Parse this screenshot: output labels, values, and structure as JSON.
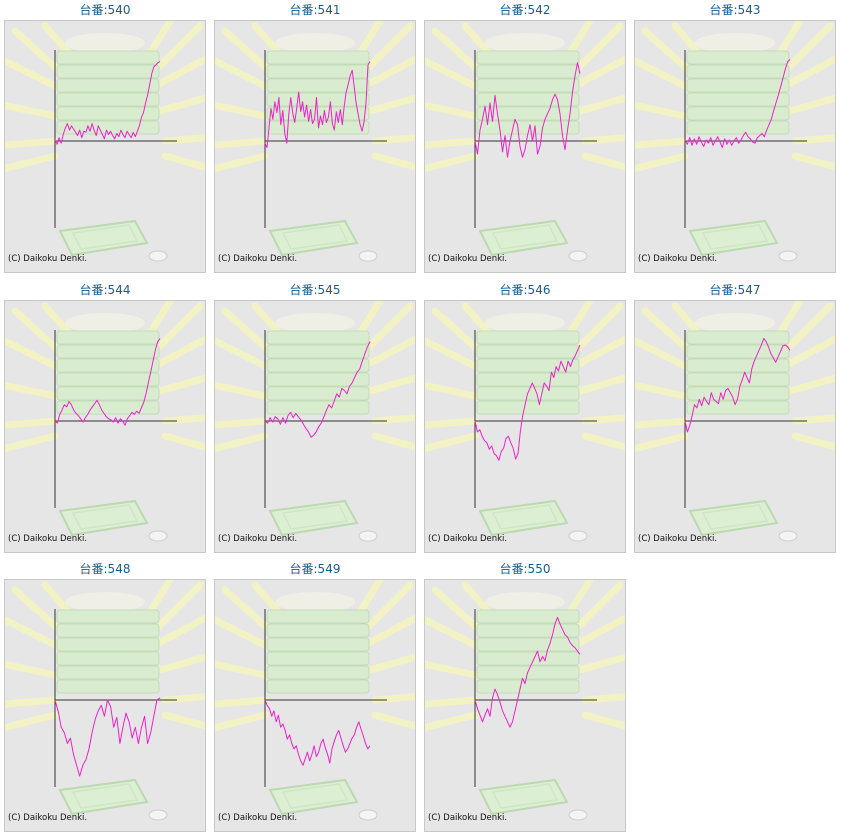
{
  "machine_prefix": "台番:",
  "copyright": "(C) Daikoku Denki.",
  "colors": {
    "line": "#ee22cc",
    "axis": "#333333",
    "background": "#e6e6e6",
    "title": "#1a5d8f"
  },
  "chart_data": [
    {
      "type": "line",
      "title": "台番:540",
      "xlim": [
        0,
        100
      ],
      "ylim": [
        -8000,
        8000
      ],
      "y": [
        100,
        -300,
        300,
        -200,
        600,
        1200,
        1600,
        1000,
        1400,
        1100,
        800,
        500,
        1000,
        300,
        900,
        800,
        1400,
        900,
        1600,
        1000,
        500,
        1400,
        1000,
        600,
        200,
        1000,
        600,
        900,
        500,
        200,
        700,
        400,
        1000,
        600,
        300,
        900,
        600,
        300,
        800,
        400,
        900,
        1400,
        2200,
        2600,
        3500,
        4200,
        5200,
        6200,
        6800,
        7000,
        7200,
        7300
      ]
    },
    {
      "type": "line",
      "title": "台番:541",
      "xlim": [
        0,
        100
      ],
      "ylim": [
        -8000,
        8000
      ],
      "y": [
        -200,
        -600,
        1200,
        3000,
        2000,
        3600,
        2600,
        4000,
        1500,
        2800,
        700,
        -200,
        2500,
        4000,
        2600,
        1700,
        3000,
        4500,
        2700,
        3600,
        2200,
        3300,
        1800,
        2900,
        1600,
        2000,
        4000,
        1200,
        2300,
        1500,
        2800,
        1700,
        2200,
        3600,
        1600,
        1000,
        2700,
        1700,
        2900,
        1500,
        3200,
        4500,
        5200,
        6000,
        6500,
        5000,
        3500,
        2500,
        1500,
        900,
        1800,
        3500,
        7000,
        7300
      ]
    },
    {
      "type": "line",
      "title": "台番:542",
      "xlim": [
        0,
        100
      ],
      "ylim": [
        -8000,
        8000
      ],
      "y": [
        0,
        -1200,
        1000,
        2000,
        3200,
        1500,
        3500,
        1800,
        4200,
        2500,
        1000,
        -1000,
        500,
        -1500,
        0,
        1000,
        2000,
        1500,
        -500,
        -1500,
        -800,
        500,
        1500,
        0,
        1400,
        -1200,
        -500,
        1200,
        2000,
        2500,
        3000,
        3800,
        4300,
        3800,
        2500,
        500,
        -800,
        1000,
        2500,
        4500,
        6000,
        7200,
        6200
      ]
    },
    {
      "type": "line",
      "title": "台番:543",
      "xlim": [
        0,
        100
      ],
      "ylim": [
        -8000,
        8000
      ],
      "y": [
        100,
        -300,
        300,
        -400,
        200,
        -300,
        400,
        -100,
        -500,
        100,
        -200,
        300,
        -400,
        0,
        400,
        -100,
        -600,
        200,
        -300,
        100,
        -400,
        0,
        300,
        -200,
        100,
        500,
        800,
        400,
        200,
        -100,
        -200,
        300,
        500,
        700,
        400,
        1000,
        1500,
        2000,
        2800,
        3500,
        4200,
        5000,
        5800,
        6600,
        7300,
        7500
      ]
    },
    {
      "type": "line",
      "title": "台番:544",
      "xlim": [
        0,
        100
      ],
      "ylim": [
        -8000,
        8000
      ],
      "y": [
        0,
        -200,
        600,
        1000,
        1500,
        1300,
        1800,
        1500,
        1000,
        700,
        500,
        200,
        -100,
        300,
        600,
        1000,
        1300,
        1600,
        1900,
        1500,
        1000,
        700,
        400,
        200,
        100,
        -100,
        300,
        -200,
        200,
        0,
        -400,
        200,
        500,
        800,
        600,
        900,
        700,
        1200,
        1700,
        2500,
        3500,
        4500,
        5500,
        6500,
        7300,
        7600
      ]
    },
    {
      "type": "line",
      "title": "台番:545",
      "xlim": [
        0,
        100
      ],
      "ylim": [
        -8000,
        8000
      ],
      "y": [
        0,
        -200,
        300,
        -100,
        400,
        200,
        -300,
        300,
        -200,
        500,
        800,
        300,
        700,
        400,
        100,
        -300,
        -700,
        -1000,
        -1500,
        -1300,
        -1000,
        -500,
        -200,
        400,
        1000,
        1500,
        1200,
        1800,
        2500,
        2200,
        3000,
        2800,
        2500,
        3200,
        3500,
        4000,
        4500,
        4800,
        5500,
        6200,
        6800,
        7300
      ]
    },
    {
      "type": "line",
      "title": "台番:546",
      "xlim": [
        0,
        100
      ],
      "ylim": [
        -8000,
        8000
      ],
      "y": [
        0,
        -1000,
        -800,
        -1400,
        -1800,
        -2000,
        -2600,
        -2300,
        -3000,
        -3200,
        -3600,
        -2800,
        -2500,
        -1600,
        -1400,
        -2000,
        -2500,
        -3500,
        -3000,
        -1000,
        500,
        1500,
        2500,
        3000,
        3500,
        3000,
        2500,
        1500,
        2500,
        3500,
        3200,
        2800,
        4500,
        4000,
        5000,
        4600,
        5500,
        5000,
        4500,
        5500,
        5000,
        5600,
        6000,
        6500,
        7000
      ]
    },
    {
      "type": "line",
      "title": "台番:547",
      "xlim": [
        0,
        100
      ],
      "ylim": [
        -8000,
        8000
      ],
      "y": [
        0,
        -1000,
        -400,
        500,
        1500,
        1200,
        2000,
        1400,
        2200,
        1800,
        1500,
        2600,
        2000,
        1800,
        1600,
        2600,
        2000,
        2800,
        3000,
        2600,
        2200,
        1500,
        2000,
        3200,
        3800,
        4500,
        4000,
        3500,
        4800,
        5500,
        6000,
        6500,
        7000,
        7600,
        7300,
        6800,
        6200,
        5800,
        5400,
        5900,
        6400,
        6900,
        7000,
        6800,
        6500
      ]
    },
    {
      "type": "line",
      "title": "台番:548",
      "xlim": [
        0,
        100
      ],
      "ylim": [
        -8000,
        8000
      ],
      "y": [
        0,
        -1000,
        -2500,
        -3000,
        -4000,
        -3500,
        -5000,
        -6000,
        -7000,
        -6000,
        -5500,
        -4500,
        -3000,
        -1800,
        -1000,
        -500,
        -1500,
        0,
        -600,
        -2500,
        -1600,
        -4000,
        -2500,
        -1200,
        -2000,
        -3500,
        -2500,
        -4000,
        -2500,
        -1500,
        -4000,
        -3000,
        -1500,
        0,
        200
      ]
    },
    {
      "type": "line",
      "title": "台番:549",
      "xlim": [
        0,
        100
      ],
      "ylim": [
        -8000,
        8000
      ],
      "y": [
        0,
        -500,
        -800,
        -1500,
        -1000,
        -2000,
        -1400,
        -2500,
        -2200,
        -2800,
        -3600,
        -3200,
        -4000,
        -4500,
        -4200,
        -5000,
        -5600,
        -6000,
        -5400,
        -4800,
        -5600,
        -5000,
        -4200,
        -5200,
        -4800,
        -4000,
        -3600,
        -4400,
        -5000,
        -5800,
        -4500,
        -3800,
        -3200,
        -2800,
        -3500,
        -4200,
        -4800,
        -4500,
        -4000,
        -3500,
        -3200,
        -2500,
        -2000,
        -2700,
        -3300,
        -4000,
        -4500,
        -4200
      ]
    },
    {
      "type": "line",
      "title": "台番:550",
      "xlim": [
        0,
        100
      ],
      "ylim": [
        -8000,
        8000
      ],
      "y": [
        0,
        -800,
        -1400,
        -2000,
        -1400,
        -800,
        -1500,
        200,
        1000,
        500,
        -200,
        -1000,
        -1500,
        -2000,
        -2500,
        -2000,
        -1000,
        0,
        1000,
        2000,
        1500,
        2500,
        3000,
        3500,
        4000,
        4500,
        3500,
        4000,
        3600,
        4600,
        5200,
        6000,
        7000,
        7600,
        7000,
        6500,
        6000,
        5800,
        5300,
        5000,
        4800,
        4500,
        4200
      ]
    }
  ]
}
